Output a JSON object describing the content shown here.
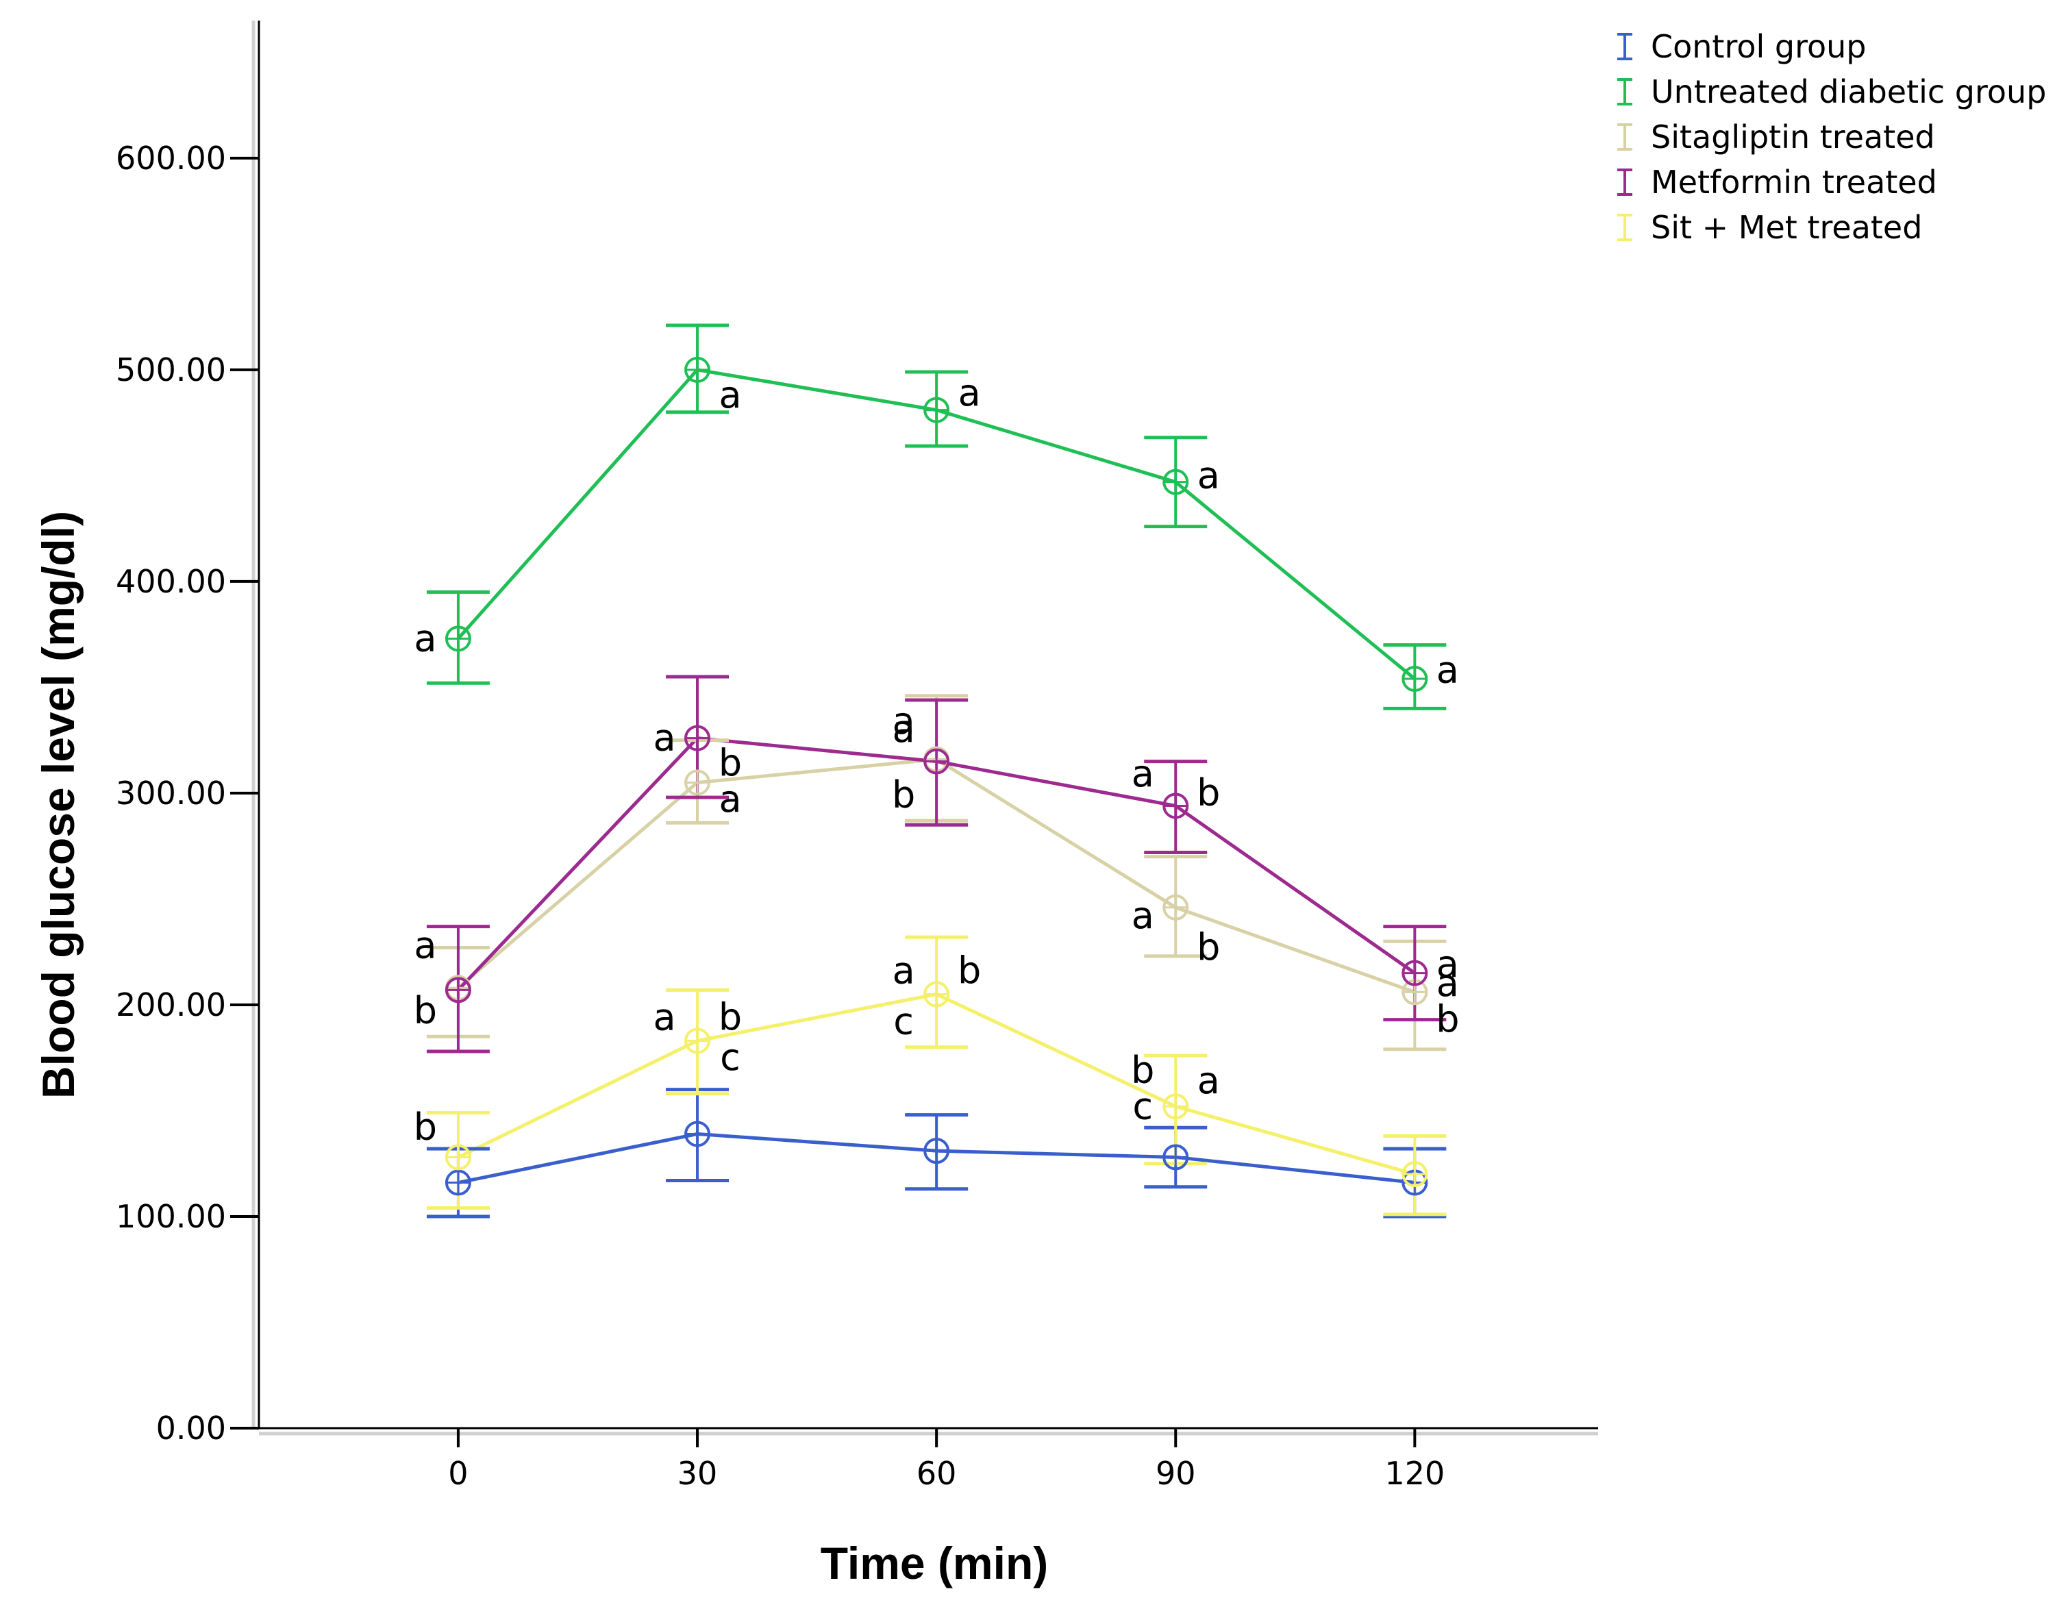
{
  "chart_data": {
    "type": "line",
    "title": "",
    "xlabel": "Time (min)",
    "ylabel": "Blood glucose level (mg/dl)",
    "categories": [
      "0",
      "30",
      "60",
      "90",
      "120"
    ],
    "x": [
      0,
      30,
      60,
      90,
      120
    ],
    "xlim": [
      -25,
      143
    ],
    "ylim": [
      0,
      665
    ],
    "yticks": [
      0,
      100,
      200,
      300,
      400,
      500,
      600
    ],
    "ytick_labels": [
      "0.00",
      "100.00",
      "200.00",
      "300.00",
      "400.00",
      "500.00",
      "600.00"
    ],
    "grid": false,
    "legend_position": "top-right",
    "series": [
      {
        "name": "Control group",
        "color": "#3a5fcd",
        "values": [
          116,
          139,
          131,
          128,
          116
        ],
        "err_low": [
          100,
          117,
          113,
          114,
          100
        ],
        "err_high": [
          132,
          160,
          148,
          142,
          132
        ],
        "annotations": []
      },
      {
        "name": "Untreated diabetic group",
        "color": "#1fbf55",
        "values": [
          373,
          500,
          481,
          447,
          354
        ],
        "err_low": [
          352,
          480,
          464,
          426,
          340
        ],
        "err_high": [
          395,
          521,
          499,
          468,
          370
        ],
        "annotations": [
          {
            "x": 0,
            "y": 373,
            "text": "a",
            "side": "left",
            "dy": 0
          },
          {
            "x": 30,
            "y": 500,
            "text": "a",
            "side": "right",
            "dy": -12
          },
          {
            "x": 60,
            "y": 481,
            "text": "a",
            "side": "right",
            "dy": 8
          },
          {
            "x": 90,
            "y": 447,
            "text": "a",
            "side": "right",
            "dy": 3
          },
          {
            "x": 120,
            "y": 354,
            "text": "a",
            "side": "right",
            "dy": 4
          }
        ]
      },
      {
        "name": "Sitagliptin treated",
        "color": "#d8d1a6",
        "values": [
          208,
          305,
          316,
          246,
          206
        ],
        "err_low": [
          185,
          286,
          287,
          223,
          179
        ],
        "err_high": [
          227,
          325,
          346,
          270,
          230
        ],
        "annotations": [
          {
            "x": 0,
            "y": 208,
            "text": "a",
            "side": "left",
            "dy": 20
          },
          {
            "x": 30,
            "y": 305,
            "text": "a",
            "side": "right",
            "dy": -8
          },
          {
            "x": 60,
            "y": 316,
            "text": "a",
            "side": "left",
            "dy": 18
          },
          {
            "x": 90,
            "y": 246,
            "text": "a",
            "side": "left",
            "dy": -4
          },
          {
            "x": 120,
            "y": 206,
            "text": "a",
            "side": "right",
            "dy": 4
          }
        ]
      },
      {
        "name": "Metformin treated",
        "color": "#9c2a8f",
        "values": [
          207,
          326,
          315,
          294,
          215
        ],
        "err_low": [
          178,
          298,
          285,
          272,
          193
        ],
        "err_high": [
          237,
          355,
          344,
          315,
          237
        ],
        "annotations": [
          {
            "x": 0,
            "y": 207,
            "text": "b",
            "side": "left",
            "dy": -10
          },
          {
            "x": 30,
            "y": 326,
            "text": "b",
            "side": "right",
            "dy": -12
          },
          {
            "x": 60,
            "y": 315,
            "text": "b",
            "side": "left",
            "dy": -16
          },
          {
            "x": 90,
            "y": 294,
            "text": "b",
            "side": "right",
            "dy": 6
          },
          {
            "x": 120,
            "y": 215,
            "text": "b",
            "side": "right",
            "dy": -22
          }
        ]
      },
      {
        "name": "Sit + Met treated",
        "color": "#f4f06a",
        "values": [
          128,
          183,
          205,
          152,
          120
        ],
        "err_low": [
          104,
          158,
          180,
          125,
          101
        ],
        "err_high": [
          149,
          207,
          232,
          176,
          138
        ],
        "annotations": [
          {
            "x": 0,
            "y": 128,
            "text": "b",
            "side": "left",
            "dy": 14
          },
          {
            "x": 30,
            "y": 183,
            "text": "c",
            "side": "right",
            "dy": -8
          },
          {
            "x": 60,
            "y": 205,
            "text": "c",
            "side": "left",
            "dy": -13
          },
          {
            "x": 90,
            "y": 152,
            "text": "c",
            "side": "left",
            "dy": 0
          },
          {
            "x": 120,
            "y": 120,
            "text": "",
            "side": "right",
            "dy": 0
          }
        ]
      }
    ],
    "extra_annotations": [
      {
        "x": 30,
        "y": 326,
        "text": "a",
        "side": "left",
        "dy": 0
      },
      {
        "x": 30,
        "y": 183,
        "text": "a",
        "side": "left",
        "dy": 11
      },
      {
        "x": 30,
        "y": 183,
        "text": "b",
        "side": "right",
        "dy": 11
      },
      {
        "x": 60,
        "y": 315,
        "text": "a",
        "side": "left",
        "dy": 15
      },
      {
        "x": 60,
        "y": 205,
        "text": "a",
        "side": "left",
        "dy": 11
      },
      {
        "x": 60,
        "y": 205,
        "text": "b",
        "side": "right",
        "dy": 11
      },
      {
        "x": 90,
        "y": 294,
        "text": "a",
        "side": "left",
        "dy": 15
      },
      {
        "x": 90,
        "y": 246,
        "text": "b",
        "side": "right",
        "dy": -19
      },
      {
        "x": 90,
        "y": 152,
        "text": "b",
        "side": "left",
        "dy": 17
      },
      {
        "x": 90,
        "y": 152,
        "text": "a",
        "side": "right",
        "dy": 12
      },
      {
        "x": 120,
        "y": 215,
        "text": "a",
        "side": "right",
        "dy": 4
      }
    ]
  }
}
